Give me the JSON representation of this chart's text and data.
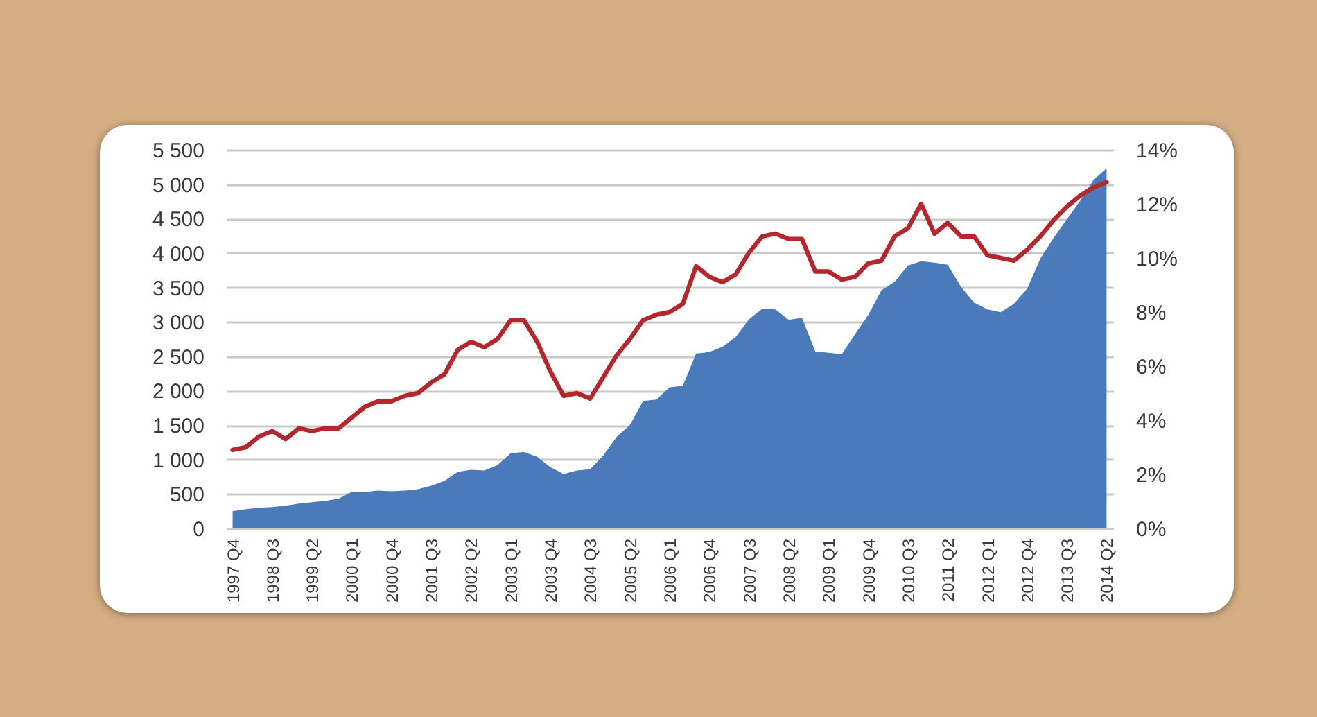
{
  "chart_data": {
    "type": "area",
    "categories": [
      "1997 Q4",
      null,
      null,
      "1998 Q3",
      null,
      null,
      "1999 Q2",
      null,
      null,
      "2000 Q1",
      null,
      null,
      "2000 Q4",
      null,
      null,
      "2001 Q3",
      null,
      null,
      "2002 Q2",
      null,
      null,
      "2003 Q1",
      null,
      null,
      "2003 Q4",
      null,
      null,
      "2004 Q3",
      null,
      null,
      "2005 Q2",
      null,
      null,
      "2006 Q1",
      null,
      null,
      "2006 Q4",
      null,
      null,
      "2007 Q3",
      null,
      null,
      "2008 Q2",
      null,
      null,
      "2009 Q1",
      null,
      null,
      "2009 Q4",
      null,
      null,
      "2010 Q3",
      null,
      null,
      "2011 Q2",
      null,
      null,
      "2012 Q1",
      null,
      null,
      "2012 Q4",
      null,
      null,
      "2013 Q3",
      null,
      null,
      "2014 Q2"
    ],
    "series": [
      {
        "color": "#4a7ab9",
        "values": [
          250,
          280,
          300,
          310,
          330,
          360,
          380,
          400,
          430,
          530,
          530,
          550,
          540,
          550,
          570,
          620,
          690,
          820,
          850,
          840,
          920,
          1090,
          1110,
          1040,
          890,
          790,
          840,
          860,
          1060,
          1330,
          1500,
          1850,
          1870,
          2050,
          2070,
          2540,
          2560,
          2640,
          2780,
          3040,
          3190,
          3180,
          3030,
          3060,
          2570,
          2550,
          2530,
          2820,
          3100,
          3460,
          3580,
          3820,
          3880,
          3860,
          3830,
          3510,
          3280,
          3180,
          3140,
          3260,
          3480,
          3920,
          4220,
          4490,
          4760,
          5060,
          5230
        ]
      },
      {
        "type": "line",
        "color": "#b3282d",
        "axis": "y2",
        "values": [
          2.9,
          3.0,
          3.4,
          3.6,
          3.3,
          3.7,
          3.6,
          3.7,
          3.7,
          4.1,
          4.5,
          4.7,
          4.7,
          4.9,
          5.0,
          5.4,
          5.7,
          6.6,
          6.9,
          6.7,
          7.0,
          7.7,
          7.7,
          6.9,
          5.8,
          4.9,
          5.0,
          4.8,
          5.6,
          6.4,
          7.0,
          7.7,
          7.9,
          8.0,
          8.3,
          9.7,
          9.3,
          9.1,
          9.4,
          10.2,
          10.8,
          10.9,
          10.7,
          10.7,
          9.5,
          9.5,
          9.2,
          9.3,
          9.8,
          9.9,
          10.8,
          11.1,
          12.0,
          10.9,
          11.3,
          10.8,
          10.8,
          10.1,
          10.0,
          9.9,
          10.3,
          10.8,
          11.4,
          11.9,
          12.3,
          12.6,
          12.8
        ]
      }
    ],
    "ylim": [
      0,
      5500
    ],
    "yticks": [
      0,
      500,
      {
        "value": 1000,
        "label": "1 000"
      },
      {
        "value": 1500,
        "label": "1 500"
      },
      {
        "value": 2000,
        "label": "2 000"
      },
      {
        "value": 2500,
        "label": "2 500"
      },
      {
        "value": 3000,
        "label": "3 000"
      },
      {
        "value": 3500,
        "label": "3 500"
      },
      {
        "value": 4000,
        "label": "4 000"
      },
      {
        "value": 4500,
        "label": "4 500"
      },
      {
        "value": 5000,
        "label": "5 000"
      },
      {
        "value": 5500,
        "label": "5 500"
      }
    ],
    "y2lim": [
      0,
      14
    ],
    "y2ticks": [
      {
        "value": 0,
        "label": "0%"
      },
      {
        "value": 2,
        "label": "2%"
      },
      {
        "value": 4,
        "label": "4%"
      },
      {
        "value": 6,
        "label": "6%"
      },
      {
        "value": 8,
        "label": "8%"
      },
      {
        "value": 10,
        "label": "10%"
      },
      {
        "value": 12,
        "label": "12%"
      },
      {
        "value": 14,
        "label": "14%"
      }
    ],
    "grid": "y"
  }
}
